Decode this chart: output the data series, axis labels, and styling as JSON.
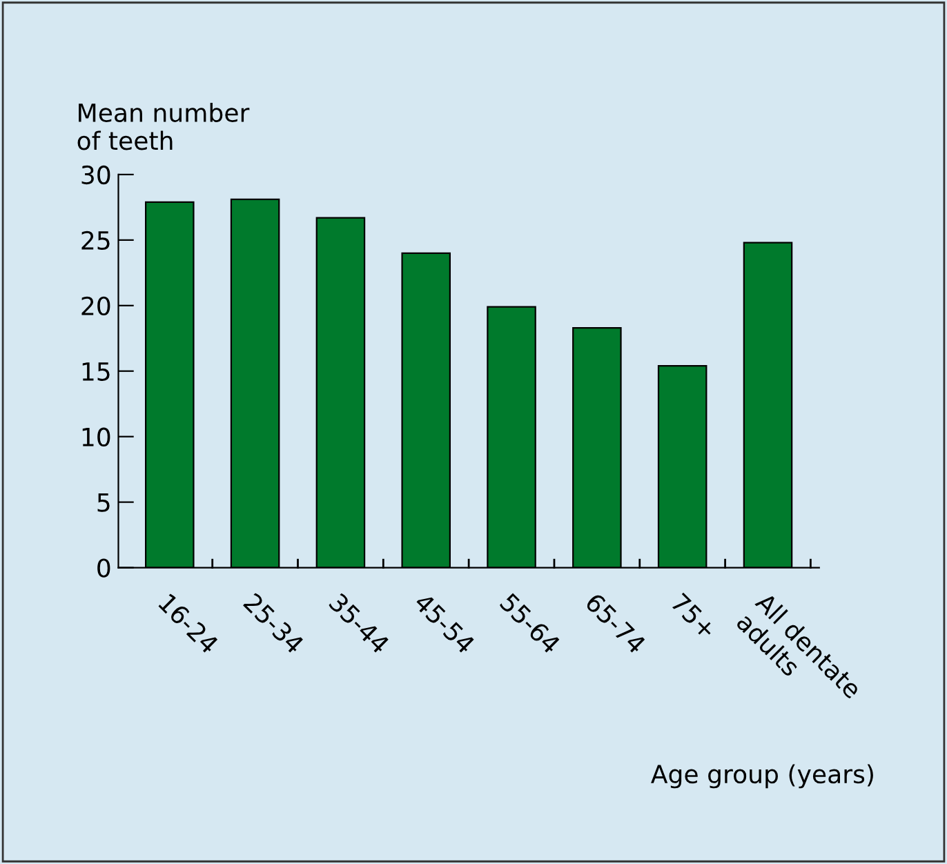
{
  "chart_data": {
    "type": "bar",
    "ylabel": "Mean number\nof teeth",
    "xlabel": "Age group (years)",
    "categories": [
      "16-24",
      "25-34",
      "35-44",
      "45-54",
      "55-64",
      "65-74",
      "75+",
      "All dentate\nadults"
    ],
    "values": [
      27.9,
      28.1,
      26.7,
      24.0,
      19.9,
      18.3,
      15.4,
      24.8
    ],
    "color": "#007a2c",
    "ylim": [
      0,
      30
    ],
    "yticks": [
      0,
      5,
      10,
      15,
      20,
      25,
      30
    ],
    "grid": false
  }
}
